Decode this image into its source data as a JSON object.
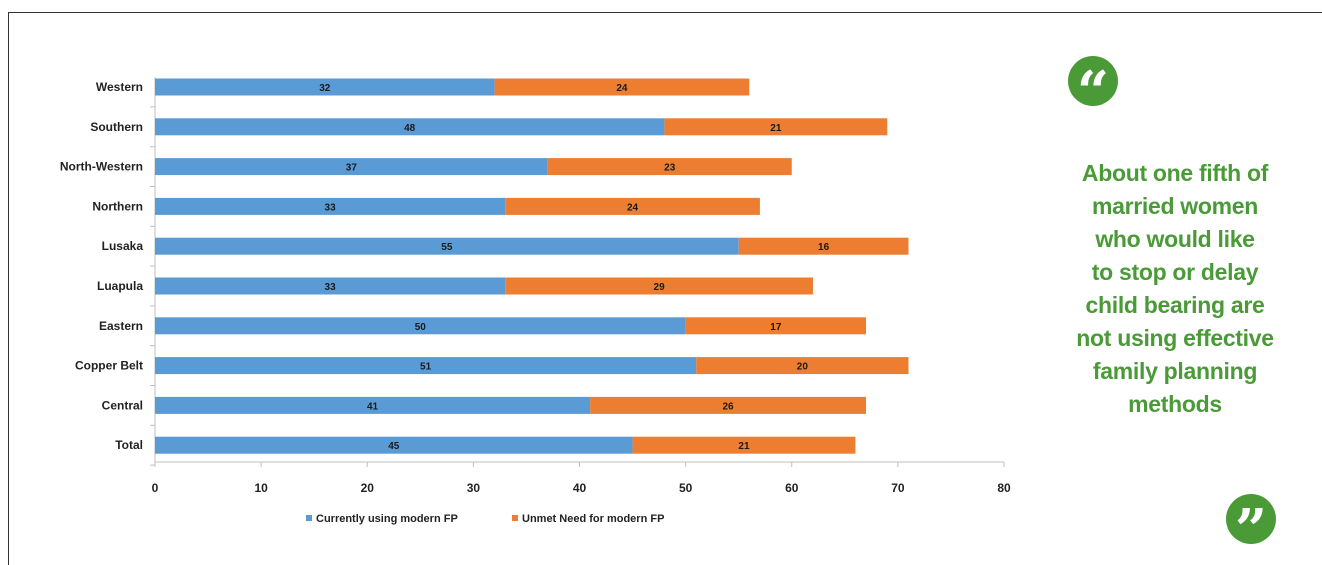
{
  "chart_data": {
    "type": "bar",
    "orientation": "horizontal",
    "stacked": true,
    "categories": [
      "Western",
      "Southern",
      "North-Western",
      "Northern",
      "Lusaka",
      "Luapula",
      "Eastern",
      "Copper Belt",
      "Central",
      "Total"
    ],
    "series": [
      {
        "name": "Currently using modern FP",
        "values": [
          32,
          48,
          37,
          33,
          55,
          33,
          50,
          51,
          41,
          45
        ],
        "color": "#5b9bd5"
      },
      {
        "name": "Unmet Need for modern FP",
        "values": [
          24,
          21,
          23,
          24,
          16,
          29,
          17,
          20,
          26,
          21
        ],
        "color": "#ed7d31"
      }
    ],
    "xlim": [
      0,
      80
    ],
    "xticks": [
      "0",
      "10",
      "20",
      "30",
      "40",
      "50",
      "60",
      "70",
      "80"
    ],
    "grid": false,
    "legend_position": "bottom",
    "title": "",
    "xlabel": "",
    "ylabel": ""
  },
  "quote": {
    "open_mark": "“",
    "close_mark": "”",
    "lines": [
      "About one fifth of",
      "married women",
      "who would like",
      "to stop or delay",
      "child bearing are",
      "not using effective",
      "family planning",
      "methods"
    ],
    "color": "#4a9a37"
  }
}
